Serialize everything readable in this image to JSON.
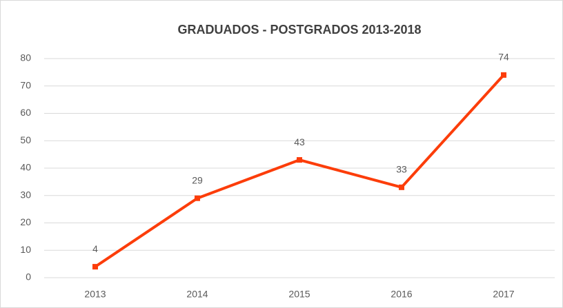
{
  "chart_data": {
    "type": "line",
    "title": "GRADUADOS - POSTGRADOS 2013-2018",
    "categories": [
      "2013",
      "2014",
      "2015",
      "2016",
      "2017"
    ],
    "values": [
      4,
      29,
      43,
      33,
      74
    ],
    "color": "#fc3d0a",
    "ylim": [
      0,
      80
    ],
    "yticks": [
      0,
      10,
      20,
      30,
      40,
      50,
      60,
      70,
      80
    ],
    "grid": true
  }
}
